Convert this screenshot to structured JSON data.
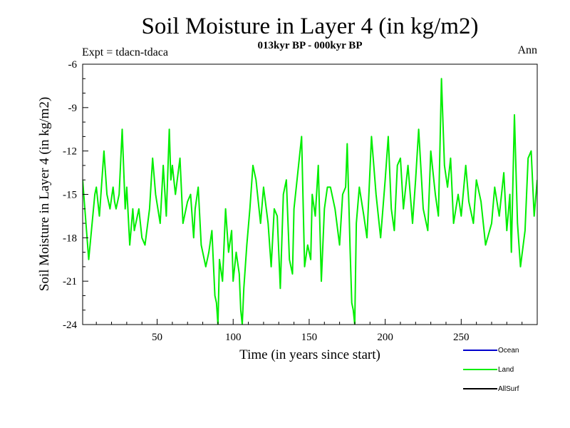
{
  "chart_data": {
    "type": "line",
    "title": "Soil Moisture in Layer 4 (in kg/m2)",
    "subtitle": "013kyr BP - 000kyr BP",
    "expt_label": "Expt = tdacn-tdaca",
    "season_label": "Ann",
    "xlabel": "Time (in years since start)",
    "ylabel": "Soil Moisture in Layer 4 (in kg/m2)",
    "xlim": [
      1,
      300
    ],
    "ylim": [
      -24,
      -6
    ],
    "xticks": [
      50,
      100,
      150,
      200,
      250
    ],
    "yticks": [
      -24,
      -21,
      -18,
      -15,
      -12,
      -9,
      -6
    ],
    "legend_position": "bottom-right",
    "series": [
      {
        "name": "Ocean",
        "color": "#0000cc",
        "x": [],
        "values": []
      },
      {
        "name": "Land",
        "color": "#00ee00",
        "x": [
          1,
          5,
          9,
          10,
          12,
          15,
          17,
          19,
          21,
          22,
          23,
          25,
          27,
          29,
          30,
          32,
          34,
          35,
          38,
          40,
          42,
          45,
          47,
          49,
          52,
          54,
          56,
          58,
          59,
          60,
          62,
          65,
          67,
          70,
          72,
          74,
          75,
          77,
          79,
          81,
          82,
          84,
          86,
          88,
          89,
          90,
          91,
          93,
          95,
          97,
          99,
          100,
          102,
          104,
          105,
          106,
          107,
          109,
          111,
          113,
          115,
          118,
          120,
          123,
          125,
          127,
          129,
          131,
          133,
          135,
          137,
          139,
          140,
          142,
          145,
          147,
          149,
          151,
          152,
          154,
          156,
          158,
          160,
          162,
          164,
          167,
          170,
          172,
          174,
          175,
          177,
          178,
          179,
          180,
          181,
          183,
          186,
          188,
          191,
          194,
          197,
          200,
          202,
          204,
          206,
          208,
          210,
          212,
          215,
          218,
          220,
          222,
          225,
          228,
          230,
          233,
          235,
          236,
          237,
          239,
          241,
          243,
          245,
          248,
          250,
          253,
          255,
          258,
          260,
          263,
          266,
          270,
          272,
          275,
          278,
          280,
          282,
          283,
          285,
          287,
          289,
          292,
          294,
          296,
          298,
          300
        ],
        "values": [
          -14.0,
          -19.5,
          -15.0,
          -14.5,
          -16.5,
          -12.0,
          -15.0,
          -16.0,
          -14.5,
          -15.5,
          -16.0,
          -15.0,
          -10.5,
          -16.0,
          -14.5,
          -18.5,
          -16.0,
          -17.5,
          -16.0,
          -18.0,
          -18.5,
          -16.0,
          -12.5,
          -15.0,
          -17.0,
          -13.0,
          -16.5,
          -10.5,
          -14.0,
          -13.0,
          -15.0,
          -12.5,
          -17.0,
          -15.5,
          -15.0,
          -18.0,
          -16.0,
          -14.5,
          -18.5,
          -19.5,
          -20.0,
          -19.0,
          -17.5,
          -22.0,
          -22.5,
          -24.0,
          -19.5,
          -21.0,
          -16.0,
          -19.0,
          -17.5,
          -21.0,
          -19.0,
          -20.5,
          -23.0,
          -24.0,
          -21.5,
          -18.5,
          -16.0,
          -13.0,
          -14.0,
          -17.0,
          -14.5,
          -17.0,
          -20.0,
          -16.0,
          -16.5,
          -21.5,
          -15.0,
          -14.0,
          -19.5,
          -20.5,
          -16.0,
          -14.0,
          -11.0,
          -20.0,
          -18.5,
          -19.5,
          -15.0,
          -16.5,
          -13.0,
          -21.0,
          -16.0,
          -14.5,
          -14.5,
          -16.0,
          -18.5,
          -15.0,
          -14.5,
          -11.5,
          -19.0,
          -22.5,
          -23.0,
          -24.0,
          -17.0,
          -14.5,
          -16.5,
          -18.0,
          -11.0,
          -15.0,
          -18.0,
          -14.0,
          -11.0,
          -16.0,
          -17.5,
          -13.0,
          -12.5,
          -16.0,
          -13.0,
          -17.0,
          -14.0,
          -10.5,
          -16.0,
          -17.5,
          -12.0,
          -15.0,
          -16.5,
          -12.0,
          -7.0,
          -13.0,
          -14.5,
          -12.5,
          -17.0,
          -15.0,
          -16.5,
          -13.0,
          -15.5,
          -17.0,
          -14.0,
          -15.5,
          -18.5,
          -17.0,
          -14.5,
          -16.5,
          -13.5,
          -17.5,
          -15.0,
          -19.0,
          -9.5,
          -17.0,
          -20.0,
          -17.5,
          -12.5,
          -12.0,
          -16.5,
          -14.0
        ]
      },
      {
        "name": "AllSurf",
        "color": "#000000",
        "x": [],
        "values": []
      }
    ]
  }
}
